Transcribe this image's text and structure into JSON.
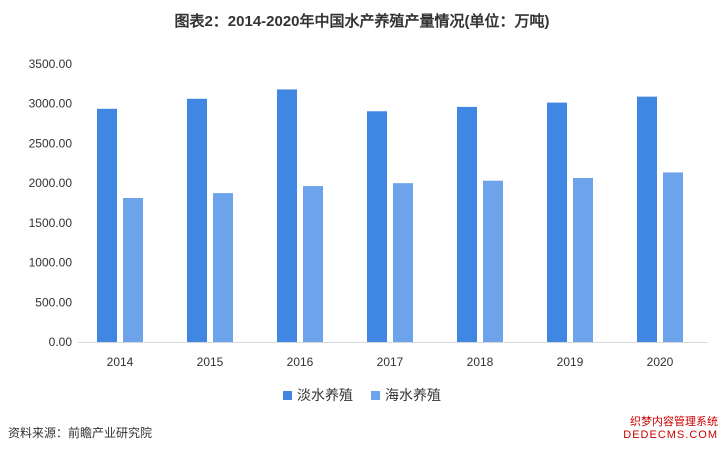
{
  "title": "图表2：2014-2020年中国水产养殖产量情况(单位：万吨)",
  "source": "资料来源：前瞻产业研究院",
  "footer": {
    "line1": "织梦内容管理系统",
    "line2": "DEDECMS.COM"
  },
  "chart_data": {
    "type": "bar",
    "title": "图表2：2014-2020年中国水产养殖产量情况(单位：万吨)",
    "categories": [
      "2014",
      "2015",
      "2016",
      "2017",
      "2018",
      "2019",
      "2020"
    ],
    "series": [
      {
        "name": "淡水养殖",
        "color": "#3F87E2",
        "values": [
          2936,
          3062,
          3180,
          2905,
          2960,
          3014,
          3089
        ]
      },
      {
        "name": "海水养殖",
        "color": "#6CA3EA",
        "values": [
          1813,
          1875,
          1963,
          2000,
          2031,
          2065,
          2135
        ]
      }
    ],
    "ylim": [
      0,
      3500
    ],
    "yticks": [
      "0.00",
      "500.00",
      "1000.00",
      "1500.00",
      "2000.00",
      "2500.00",
      "3000.00",
      "3500.00"
    ],
    "ytick_values": [
      0,
      500,
      1000,
      1500,
      2000,
      2500,
      3000,
      3500
    ],
    "grid": false,
    "legend_position": "bottom-center"
  }
}
